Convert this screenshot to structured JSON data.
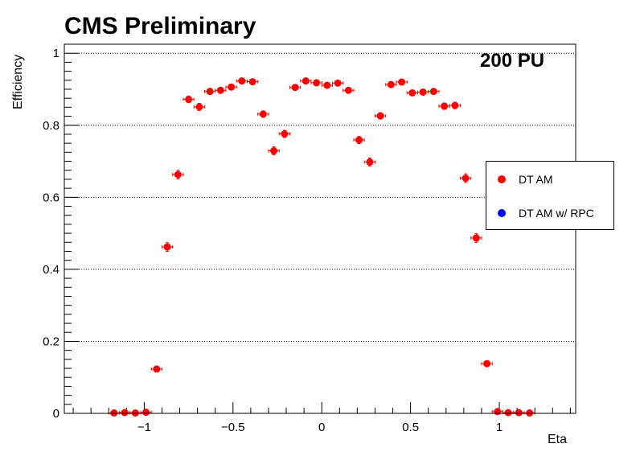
{
  "chart_data": {
    "type": "scatter",
    "title": "CMS Preliminary",
    "annotation": "200 PU",
    "xlabel": "Eta",
    "ylabel": "Efficiency",
    "xlim": [
      -1.45,
      1.43
    ],
    "ylim": [
      0,
      1.025
    ],
    "x_ticks": [
      -1,
      -0.5,
      0,
      0.5,
      1
    ],
    "x_tick_labels": [
      "−1",
      "−0.5",
      "0",
      "0.5",
      "1"
    ],
    "y_ticks": [
      0,
      0.2,
      0.4,
      0.6,
      0.8,
      1
    ],
    "y_tick_labels": [
      "0",
      "0.2",
      "0.4",
      "0.6",
      "0.8",
      "1"
    ],
    "grid": "horizontal-dotted",
    "legend": {
      "placement": "right"
    },
    "x_bin_halfwidth": 0.03,
    "series": [
      {
        "name": "DT AM",
        "color": "#ff0000",
        "x": [
          -1.17,
          -1.11,
          -1.05,
          -0.99,
          -0.93,
          -0.87,
          -0.81,
          -0.75,
          -0.69,
          -0.63,
          -0.57,
          -0.51,
          -0.45,
          -0.39,
          -0.33,
          -0.27,
          -0.21,
          -0.15,
          -0.09,
          -0.03,
          0.03,
          0.09,
          0.15,
          0.21,
          0.27,
          0.33,
          0.39,
          0.45,
          0.51,
          0.57,
          0.63,
          0.69,
          0.75,
          0.81,
          0.87,
          0.93,
          0.99,
          1.05,
          1.11,
          1.17
        ],
        "values": [
          0.001,
          0.002,
          0.001,
          0.003,
          0.123,
          0.462,
          0.663,
          0.872,
          0.851,
          0.894,
          0.897,
          0.906,
          0.923,
          0.921,
          0.831,
          0.729,
          0.776,
          0.905,
          0.923,
          0.918,
          0.911,
          0.917,
          0.897,
          0.759,
          0.698,
          0.826,
          0.913,
          0.92,
          0.89,
          0.892,
          0.894,
          0.853,
          0.855,
          0.653,
          0.487,
          0.138,
          0.005,
          0.002,
          0.002,
          0.001
        ],
        "errors": [
          0.002,
          0.002,
          0.002,
          0.003,
          0.006,
          0.012,
          0.012,
          0.009,
          0.01,
          0.007,
          0.007,
          0.007,
          0.006,
          0.006,
          0.009,
          0.011,
          0.01,
          0.007,
          0.006,
          0.006,
          0.006,
          0.006,
          0.007,
          0.01,
          0.011,
          0.009,
          0.006,
          0.006,
          0.007,
          0.007,
          0.007,
          0.009,
          0.009,
          0.012,
          0.012,
          0.008,
          0.003,
          0.002,
          0.002,
          0.002
        ]
      },
      {
        "name": "DT AM w/ RPC",
        "color": "#0000ff",
        "x": [],
        "values": [],
        "errors": []
      }
    ]
  }
}
